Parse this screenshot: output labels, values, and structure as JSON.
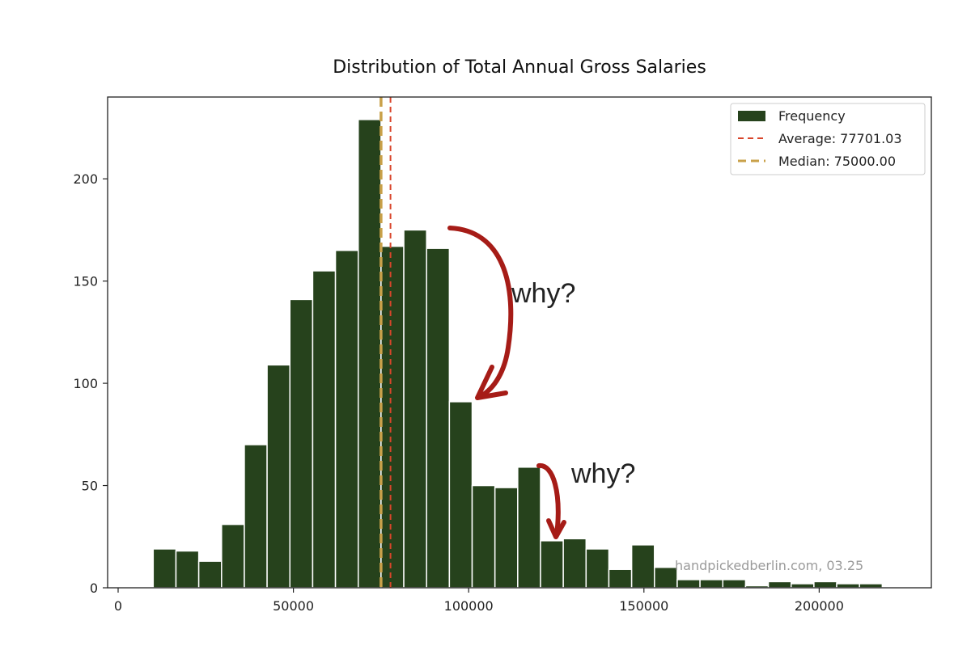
{
  "chart_data": {
    "type": "bar",
    "title": "Distribution of Total Annual Gross Salaries",
    "xlabel": "",
    "ylabel": "",
    "xlim": [
      -3000,
      232000
    ],
    "ylim": [
      0,
      240
    ],
    "x_ticks": [
      0,
      50000,
      100000,
      150000,
      200000
    ],
    "y_ticks": [
      0,
      50,
      100,
      150,
      200
    ],
    "grid": false,
    "legend_placement": "top-right",
    "colors": {
      "bars": "#26421c",
      "bar_edge": "#ffffff",
      "average": "#d9452b",
      "median": "#c9a14a",
      "annotation": "#a61c17"
    },
    "series": [
      {
        "name": "Frequency",
        "bins": [
          [
            10000,
            16500
          ],
          [
            16500,
            23000
          ],
          [
            23000,
            29500
          ],
          [
            29500,
            36000
          ],
          [
            36000,
            42500
          ],
          [
            42500,
            49000
          ],
          [
            49000,
            55500
          ],
          [
            55500,
            62000
          ],
          [
            62000,
            68500
          ],
          [
            68500,
            75000
          ],
          [
            75000,
            81500
          ],
          [
            81500,
            88000
          ],
          [
            88000,
            94500
          ],
          [
            94500,
            101000
          ],
          [
            101000,
            107500
          ],
          [
            107500,
            114000
          ],
          [
            114000,
            120500
          ],
          [
            120500,
            127000
          ],
          [
            127000,
            133500
          ],
          [
            133500,
            140000
          ],
          [
            140000,
            146500
          ],
          [
            146500,
            153000
          ],
          [
            153000,
            159500
          ],
          [
            159500,
            166000
          ],
          [
            166000,
            172500
          ],
          [
            172500,
            179000
          ],
          [
            179000,
            185500
          ],
          [
            185500,
            192000
          ],
          [
            192000,
            198500
          ],
          [
            198500,
            205000
          ],
          [
            205000,
            211500
          ],
          [
            211500,
            218000
          ]
        ],
        "values": [
          19,
          18,
          13,
          31,
          70,
          109,
          141,
          155,
          165,
          229,
          167,
          175,
          166,
          91,
          50,
          49,
          59,
          23,
          24,
          19,
          9,
          21,
          10,
          4,
          4,
          4,
          1,
          3,
          2,
          3,
          2,
          2
        ]
      }
    ],
    "lines": [
      {
        "name": "Average: 77701.03",
        "x": 77701.03,
        "style": "dashed"
      },
      {
        "name": "Median: 75000.00",
        "x": 75000.0,
        "style": "dashed"
      }
    ],
    "annotations": [
      {
        "text": "why?"
      },
      {
        "text": "why?"
      }
    ],
    "watermark": "handpickedberlin.com, 03.25"
  }
}
